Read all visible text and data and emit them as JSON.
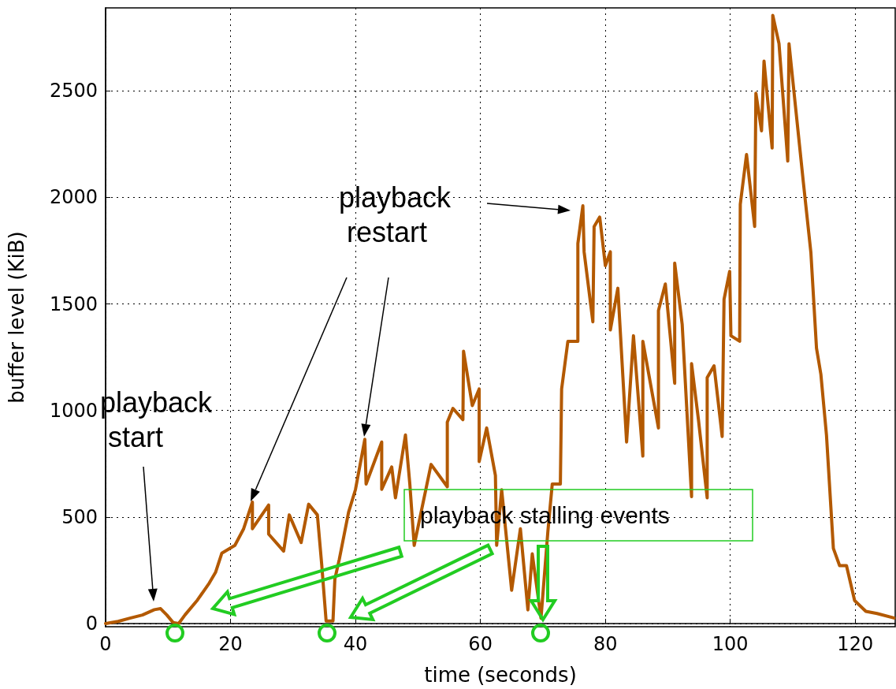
{
  "chart_data": {
    "type": "line",
    "xlabel": "time (seconds)",
    "ylabel": "buffer level (KiB)",
    "annotations": [
      "playback start",
      "playback restart",
      "playback stalling events"
    ],
    "xlim": [
      0,
      126.4
    ],
    "ylim": [
      -15,
      2890
    ],
    "xticks": [
      0,
      20,
      40,
      60,
      80,
      100,
      120
    ],
    "yticks": [
      0,
      500,
      1000,
      1500,
      2000,
      2500
    ],
    "grid": true,
    "x": [
      0,
      2,
      3.9,
      5.9,
      7.8,
      8.8,
      9.8,
      10.8,
      11.7,
      12.7,
      14.7,
      16.6,
      17.6,
      18.6,
      20.7,
      22.1,
      23.5,
      23.5,
      26.1,
      26.1,
      28.5,
      29.4,
      31.3,
      32.5,
      33.9,
      34.6,
      35.3,
      36.4,
      36.7,
      37.4,
      38.9,
      40,
      41.5,
      41.7,
      44.2,
      44.2,
      45.8,
      46.4,
      48,
      48.7,
      49.4,
      52.1,
      54.7,
      54.7,
      55.6,
      57.2,
      57.3,
      58.7,
      59.8,
      59.8,
      61,
      62.4,
      62.6,
      63.4,
      65,
      66.4,
      67.6,
      68.3,
      69.7,
      70.8,
      71.5,
      72.8,
      73,
      74,
      75.6,
      75.6,
      76.4,
      76.6,
      78,
      78.2,
      79.1,
      80,
      80.8,
      80.8,
      82,
      83.4,
      84.5,
      86,
      86,
      88.5,
      88.5,
      89.6,
      91.1,
      91.1,
      92.3,
      93.8,
      93.8,
      94.9,
      96.3,
      96.3,
      97.4,
      98.7,
      99,
      99.9,
      100.1,
      101.5,
      101.6,
      102.6,
      103.9,
      104.1,
      105,
      105.4,
      106.7,
      106.8,
      107.8,
      109.2,
      109.4,
      110.4,
      111.7,
      112.9,
      113.8,
      114.5,
      115.4,
      116.5,
      117.5,
      118.6,
      119.9,
      121.7,
      123.5,
      126.2
    ],
    "series": [
      {
        "color": "#b35900",
        "values": [
          0,
          10,
          25,
          40,
          65,
          70,
          40,
          5,
          0,
          40,
          110,
          190,
          240,
          330,
          367,
          445,
          570,
          445,
          556,
          420,
          340,
          510,
          380,
          560,
          510,
          275,
          12,
          12,
          209,
          300,
          523,
          629,
          865,
          655,
          852,
          630,
          735,
          590,
          885,
          655,
          367,
          747,
          642,
          945,
          1010,
          957,
          1278,
          1023,
          1101,
          760,
          918,
          695,
          367,
          628,
          156,
          445,
          64,
          327,
          25,
          432,
          655,
          655,
          1101,
          1325,
          1325,
          1784,
          1961,
          1745,
          1416,
          1863,
          1908,
          1680,
          1745,
          1378,
          1574,
          852,
          1351,
          786,
          1325,
          918,
          1469,
          1594,
          1128,
          1692,
          1404,
          596,
          1220,
          957,
          590,
          1154,
          1210,
          878,
          1522,
          1653,
          1351,
          1325,
          1968,
          2202,
          1864,
          2489,
          2313,
          2640,
          2232,
          2855,
          2722,
          2171,
          2722,
          2437,
          2070,
          1742,
          1293,
          1170,
          884,
          353,
          272,
          272,
          108,
          57,
          47,
          26
        ]
      }
    ]
  }
}
